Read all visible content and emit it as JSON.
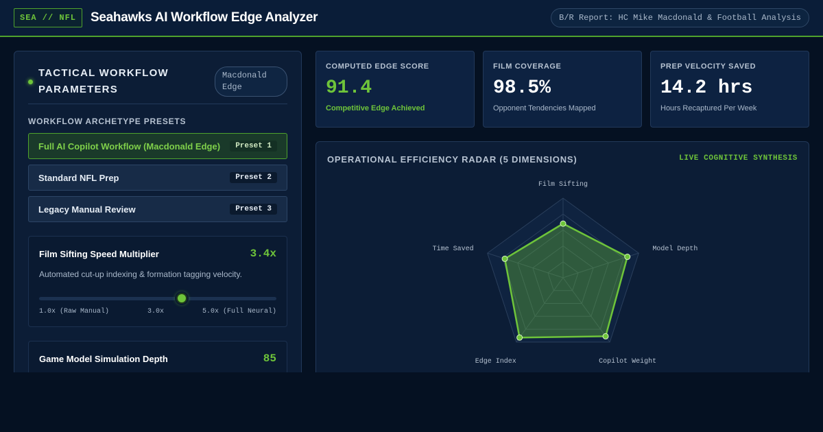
{
  "header": {
    "logo": "SEA // NFL",
    "title": "Seahawks AI Workflow Edge Analyzer",
    "report": "B/R Report: HC Mike Macdonald & Football Analysis"
  },
  "left_panel": {
    "title": "TACTICAL WORKFLOW PARAMETERS",
    "pill": "Macdonald Edge",
    "presets_label": "WORKFLOW ARCHETYPE PRESETS",
    "presets": [
      {
        "label": "Full AI Copilot Workflow (Macdonald Edge)",
        "tag": "Preset 1",
        "active": true
      },
      {
        "label": "Standard NFL Prep",
        "tag": "Preset 2",
        "active": false
      },
      {
        "label": "Legacy Manual Review",
        "tag": "Preset 3",
        "active": false
      }
    ],
    "params": [
      {
        "name": "Film Sifting Speed Multiplier",
        "value": "3.4x",
        "desc": "Automated cut-up indexing & formation tagging velocity.",
        "slider": {
          "min": 1.0,
          "max": 5.0,
          "current": 3.4
        },
        "scale": [
          "1.0x (Raw Manual)",
          "3.0x",
          "5.0x (Full Neural)"
        ]
      },
      {
        "name": "Game Model Simulation Depth",
        "value": "85"
      }
    ]
  },
  "metrics": [
    {
      "label": "COMPUTED EDGE SCORE",
      "value": "91.4",
      "sub": "Competitive Edge Achieved",
      "accent": "#6ec43a"
    },
    {
      "label": "FILM COVERAGE",
      "value": "98.5%",
      "sub": "Opponent Tendencies Mapped"
    },
    {
      "label": "PREP VELOCITY SAVED",
      "value": "14.2 hrs",
      "sub": "Hours Recaptured Per Week"
    }
  ],
  "radar": {
    "title": "OPERATIONAL EFFICIENCY RADAR (5 DIMENSIONS)",
    "live": "LIVE COGNITIVE SYNTHESIS"
  },
  "chart_data": {
    "type": "radar",
    "axes": [
      "Film Sifting",
      "Model Depth",
      "Copilot Weight",
      "Edge Index",
      "Time Saved"
    ],
    "values": [
      68,
      85,
      91,
      93,
      77
    ],
    "max": 100,
    "rings": 5,
    "series_color": "#6ec43a"
  }
}
